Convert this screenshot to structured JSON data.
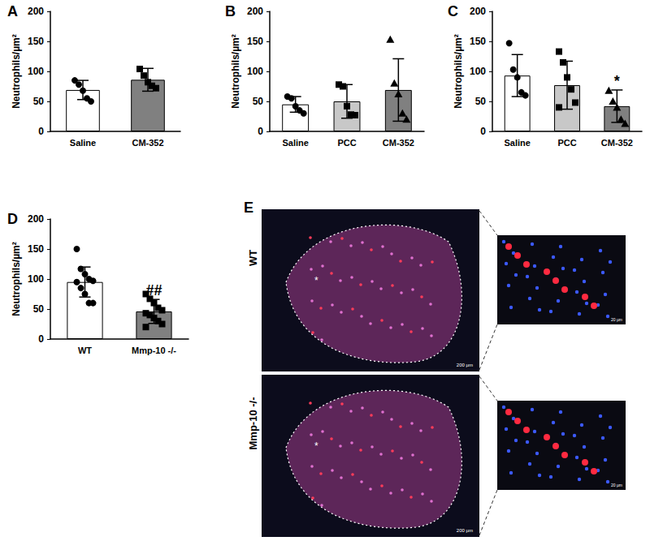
{
  "chart_data": [
    {
      "type": "bar",
      "title": "A",
      "y_label": "Neutrophils/µm²",
      "categories": [
        "Saline",
        "CM-352"
      ],
      "values": [
        69,
        86
      ],
      "error": [
        16,
        19
      ],
      "points": [
        [
          85,
          78,
          68,
          55,
          50
        ],
        [
          104,
          93,
          82,
          76,
          72
        ]
      ],
      "colors": [
        "#ffffff",
        "#808080"
      ],
      "ylim": [
        0,
        200
      ],
      "yticks": [
        0,
        50,
        100,
        150,
        200
      ],
      "grid": false
    },
    {
      "type": "bar",
      "title": "B",
      "y_label": "Neutrophils/µm²",
      "categories": [
        "Saline",
        "PCC",
        "CM-352"
      ],
      "values": [
        45,
        50,
        69
      ],
      "error": [
        13,
        28,
        52
      ],
      "points": [
        [
          58,
          55,
          42,
          35,
          30
        ],
        [
          78,
          75,
          42,
          28,
          27
        ],
        [
          153,
          80,
          62,
          30,
          20
        ]
      ],
      "colors": [
        "#ffffff",
        "#c8c8c8",
        "#808080"
      ],
      "ylim": [
        0,
        200
      ],
      "yticks": [
        0,
        50,
        100,
        150,
        200
      ],
      "grid": false
    },
    {
      "type": "bar",
      "title": "C",
      "y_label": "Neutrophils/µm²",
      "categories": [
        "Saline",
        "PCC",
        "CM-352"
      ],
      "values": [
        93,
        77,
        42
      ],
      "error": [
        35,
        40,
        27
      ],
      "points": [
        [
          147,
          103,
          90,
          65,
          60
        ],
        [
          133,
          115,
          90,
          70,
          48,
          40
        ],
        [
          68,
          50,
          40,
          20,
          13
        ]
      ],
      "colors": [
        "#ffffff",
        "#c8c8c8",
        "#808080"
      ],
      "annotations": [
        {
          "category": "CM-352",
          "text": "*"
        }
      ],
      "ylim": [
        0,
        200
      ],
      "yticks": [
        0,
        50,
        100,
        150,
        200
      ],
      "grid": false
    },
    {
      "type": "bar",
      "title": "D",
      "y_label": "Neutrophils/µm²",
      "categories": [
        "WT",
        "Mmp-10 -/-"
      ],
      "values": [
        95,
        46
      ],
      "error": [
        25,
        20
      ],
      "points": [
        [
          150,
          117,
          108,
          100,
          97,
          95,
          85,
          75,
          60,
          60
        ],
        [
          75,
          67,
          60,
          52,
          48,
          43,
          40,
          35,
          30,
          25,
          20
        ]
      ],
      "colors": [
        "#ffffff",
        "#808080"
      ],
      "annotations": [
        {
          "category": "Mmp-10 -/-",
          "text": "##"
        }
      ],
      "ylim": [
        0,
        200
      ],
      "yticks": [
        0,
        50,
        100,
        150,
        200
      ],
      "grid": false
    }
  ],
  "panel_E": {
    "label": "E",
    "rows": [
      "WT",
      "Mmp-10 -/-"
    ],
    "mark": "*",
    "scale_bars": [
      "200 µm",
      "20 µm"
    ]
  }
}
